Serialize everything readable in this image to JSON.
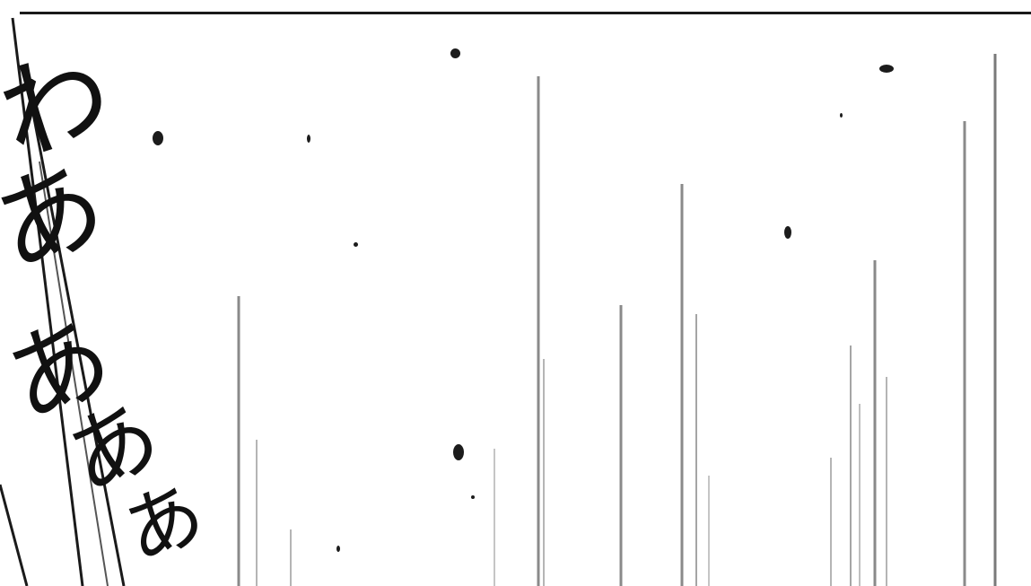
{
  "panel": {
    "ink_color": "#111111",
    "background_color": "#ffffff",
    "line_color": "#8a8a8a"
  },
  "sfx": {
    "characters": [
      "わ",
      "あ",
      "あ",
      "あ",
      "あ"
    ]
  }
}
